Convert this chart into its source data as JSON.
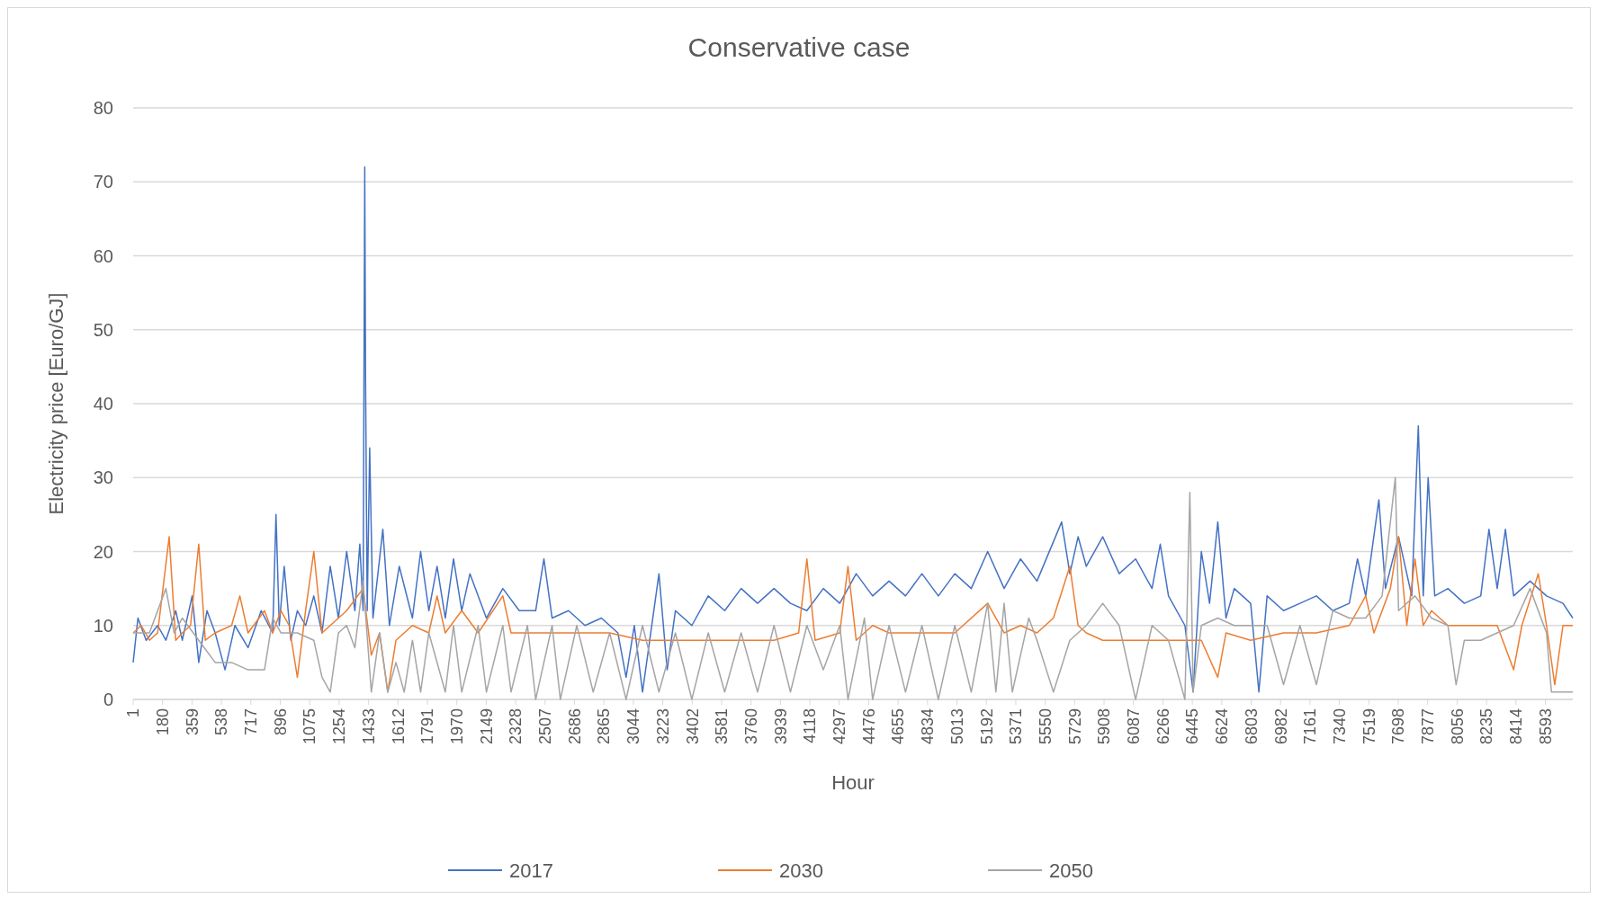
{
  "chart_data": {
    "type": "line",
    "title": "Conservative case",
    "xlabel": "Hour",
    "ylabel": "Electricity price [Euro/GJ]",
    "xlim": [
      1,
      8760
    ],
    "xticks": [
      1,
      180,
      359,
      538,
      717,
      896,
      1075,
      1254,
      1433,
      1612,
      1791,
      1970,
      2149,
      2328,
      2507,
      2686,
      2865,
      3044,
      3223,
      3402,
      3581,
      3760,
      3939,
      4118,
      4297,
      4476,
      4655,
      4834,
      5013,
      5192,
      5371,
      5550,
      5729,
      5908,
      6087,
      6266,
      6445,
      6624,
      6803,
      6982,
      7161,
      7340,
      7519,
      7698,
      7877,
      8056,
      8235,
      8414,
      8593
    ],
    "ylim": [
      0,
      80
    ],
    "yticks": [
      0,
      10,
      20,
      30,
      40,
      50,
      60,
      70,
      80
    ],
    "grid": "y",
    "legend": "bottom",
    "marker": "none",
    "line_style": "solid",
    "series": [
      {
        "name": "2017",
        "color": "#4472c4",
        "x": [
          1,
          30,
          80,
          150,
          200,
          260,
          300,
          360,
          400,
          450,
          500,
          560,
          620,
          700,
          780,
          850,
          870,
          890,
          920,
          960,
          1000,
          1050,
          1100,
          1150,
          1200,
          1250,
          1300,
          1350,
          1380,
          1400,
          1410,
          1415,
          1425,
          1440,
          1460,
          1520,
          1560,
          1620,
          1700,
          1750,
          1800,
          1850,
          1900,
          1950,
          2000,
          2050,
          2150,
          2250,
          2350,
          2450,
          2500,
          2550,
          2650,
          2750,
          2850,
          2950,
          3000,
          3050,
          3100,
          3200,
          3250,
          3300,
          3400,
          3500,
          3600,
          3700,
          3800,
          3900,
          4000,
          4100,
          4200,
          4300,
          4400,
          4500,
          4600,
          4700,
          4800,
          4900,
          5000,
          5100,
          5200,
          5300,
          5400,
          5500,
          5650,
          5700,
          5750,
          5800,
          5900,
          6000,
          6100,
          6200,
          6250,
          6300,
          6400,
          6450,
          6500,
          6550,
          6600,
          6650,
          6700,
          6800,
          6850,
          6900,
          7000,
          7100,
          7200,
          7300,
          7400,
          7450,
          7500,
          7580,
          7620,
          7700,
          7780,
          7820,
          7850,
          7880,
          7920,
          8000,
          8100,
          8200,
          8250,
          8300,
          8350,
          8400,
          8500,
          8600,
          8700,
          8760
        ],
        "values": [
          5,
          11,
          8,
          10,
          8,
          12,
          8,
          14,
          5,
          12,
          9,
          4,
          10,
          7,
          12,
          9,
          25,
          10,
          18,
          8,
          12,
          10,
          14,
          9,
          18,
          11,
          20,
          12,
          21,
          12,
          72,
          43,
          12,
          34,
          11,
          23,
          10,
          18,
          11,
          20,
          12,
          18,
          11,
          19,
          12,
          17,
          11,
          15,
          12,
          12,
          19,
          11,
          12,
          10,
          11,
          9,
          3,
          10,
          1,
          17,
          4,
          12,
          10,
          14,
          12,
          15,
          13,
          15,
          13,
          12,
          15,
          13,
          17,
          14,
          16,
          14,
          17,
          14,
          17,
          15,
          20,
          15,
          19,
          16,
          24,
          17,
          22,
          18,
          22,
          17,
          19,
          15,
          21,
          14,
          10,
          1,
          20,
          13,
          24,
          11,
          15,
          13,
          1,
          14,
          12,
          13,
          14,
          12,
          13,
          19,
          14,
          27,
          15,
          22,
          14,
          37,
          14,
          30,
          14,
          15,
          13,
          14,
          23,
          15,
          23,
          14,
          16,
          14,
          13,
          11
        ]
      },
      {
        "name": "2030",
        "color": "#ed7d31",
        "x": [
          1,
          50,
          100,
          150,
          220,
          260,
          300,
          350,
          400,
          440,
          500,
          600,
          650,
          700,
          800,
          850,
          900,
          950,
          1000,
          1050,
          1100,
          1150,
          1200,
          1300,
          1400,
          1450,
          1500,
          1550,
          1600,
          1700,
          1800,
          1850,
          1900,
          2000,
          2100,
          2250,
          2300,
          2500,
          2700,
          2900,
          3100,
          3300,
          3500,
          3700,
          3900,
          4050,
          4100,
          4150,
          4300,
          4350,
          4400,
          4500,
          4600,
          4800,
          5000,
          5200,
          5300,
          5400,
          5500,
          5600,
          5700,
          5750,
          5800,
          5900,
          6000,
          6200,
          6400,
          6500,
          6600,
          6650,
          6800,
          7000,
          7200,
          7400,
          7500,
          7550,
          7650,
          7700,
          7750,
          7800,
          7850,
          7900,
          8000,
          8100,
          8300,
          8400,
          8450,
          8550,
          8600,
          8650,
          8700,
          8760
        ],
        "values": [
          9,
          10,
          8,
          9,
          22,
          8,
          9,
          10,
          21,
          8,
          9,
          10,
          14,
          9,
          12,
          9,
          12,
          10,
          3,
          12,
          20,
          9,
          10,
          12,
          15,
          6,
          9,
          1,
          8,
          10,
          9,
          14,
          9,
          12,
          9,
          14,
          9,
          9,
          9,
          9,
          8,
          8,
          8,
          8,
          8,
          9,
          19,
          8,
          9,
          18,
          8,
          10,
          9,
          9,
          9,
          13,
          9,
          10,
          9,
          11,
          18,
          10,
          9,
          8,
          8,
          8,
          8,
          8,
          3,
          9,
          8,
          9,
          9,
          10,
          14,
          9,
          15,
          22,
          10,
          19,
          10,
          12,
          10,
          10,
          10,
          4,
          10,
          17,
          10,
          2,
          10,
          10
        ]
      },
      {
        "name": "2050",
        "color": "#a5a5a5",
        "x": [
          1,
          100,
          200,
          250,
          300,
          400,
          500,
          600,
          700,
          800,
          850,
          900,
          1000,
          1100,
          1150,
          1200,
          1250,
          1300,
          1350,
          1400,
          1450,
          1500,
          1550,
          1600,
          1650,
          1700,
          1750,
          1800,
          1900,
          1950,
          2000,
          2100,
          2150,
          2250,
          2300,
          2400,
          2450,
          2550,
          2600,
          2700,
          2800,
          2900,
          3000,
          3100,
          3200,
          3300,
          3400,
          3500,
          3600,
          3700,
          3800,
          3900,
          4000,
          4100,
          4200,
          4300,
          4350,
          4450,
          4500,
          4600,
          4700,
          4800,
          4900,
          5000,
          5100,
          5200,
          5250,
          5300,
          5350,
          5450,
          5500,
          5600,
          5700,
          5800,
          5900,
          6000,
          6100,
          6200,
          6300,
          6400,
          6430,
          6450,
          6500,
          6600,
          6700,
          6800,
          6900,
          7000,
          7100,
          7200,
          7300,
          7400,
          7500,
          7600,
          7680,
          7700,
          7800,
          7900,
          8000,
          8050,
          8100,
          8200,
          8300,
          8400,
          8500,
          8600,
          8630,
          8700,
          8760
        ],
        "values": [
          9,
          9,
          15,
          9,
          11,
          8,
          5,
          5,
          4,
          4,
          11,
          9,
          9,
          8,
          3,
          1,
          9,
          10,
          7,
          16,
          1,
          9,
          1,
          5,
          1,
          8,
          1,
          9,
          1,
          10,
          1,
          10,
          1,
          10,
          1,
          10,
          0,
          10,
          0,
          10,
          1,
          9,
          0,
          10,
          1,
          9,
          0,
          9,
          1,
          9,
          1,
          10,
          1,
          10,
          4,
          10,
          0,
          11,
          0,
          10,
          1,
          10,
          0,
          10,
          1,
          13,
          1,
          13,
          1,
          11,
          8,
          1,
          8,
          10,
          13,
          10,
          0,
          10,
          8,
          0,
          28,
          1,
          10,
          11,
          10,
          10,
          10,
          2,
          10,
          2,
          12,
          11,
          11,
          14,
          30,
          12,
          14,
          11,
          10,
          2,
          8,
          8,
          9,
          10,
          15,
          9,
          1,
          1,
          1
        ]
      }
    ]
  }
}
